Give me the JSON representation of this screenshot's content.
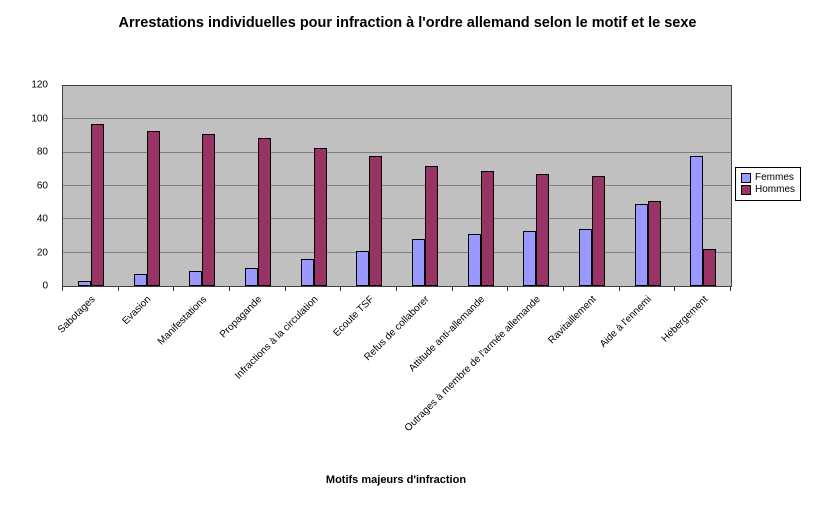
{
  "chart_data": {
    "type": "bar",
    "title": "Arrestations individuelles pour infraction à l'ordre allemand selon le motif et le sexe",
    "xlabel": "Motifs majeurs d'infraction",
    "ylabel": "",
    "ylim": [
      0,
      120
    ],
    "yticks": [
      0,
      20,
      40,
      60,
      80,
      100,
      120
    ],
    "grid": true,
    "legend_position": "right",
    "plot_background": "#c0c0c0",
    "categories": [
      "Sabotages",
      "Evasion",
      "Manifestations",
      "Propagande",
      "Infractions à la circulation",
      "Ecoute TSF",
      "Refus de collaborer",
      "Attitude anti-allemande",
      "Outrages à membre de l'armée allemande",
      "Ravitaillement",
      "Aide à l'ennemi",
      "Hébergement"
    ],
    "series": [
      {
        "name": "Femmes",
        "color": "#9999ff",
        "values": [
          3,
          7,
          9,
          11,
          16,
          21,
          28,
          31,
          33,
          34,
          49,
          78
        ]
      },
      {
        "name": "Hommes",
        "color": "#993366",
        "values": [
          97,
          93,
          91,
          89,
          83,
          78,
          72,
          69,
          67,
          66,
          51,
          22
        ]
      }
    ]
  }
}
